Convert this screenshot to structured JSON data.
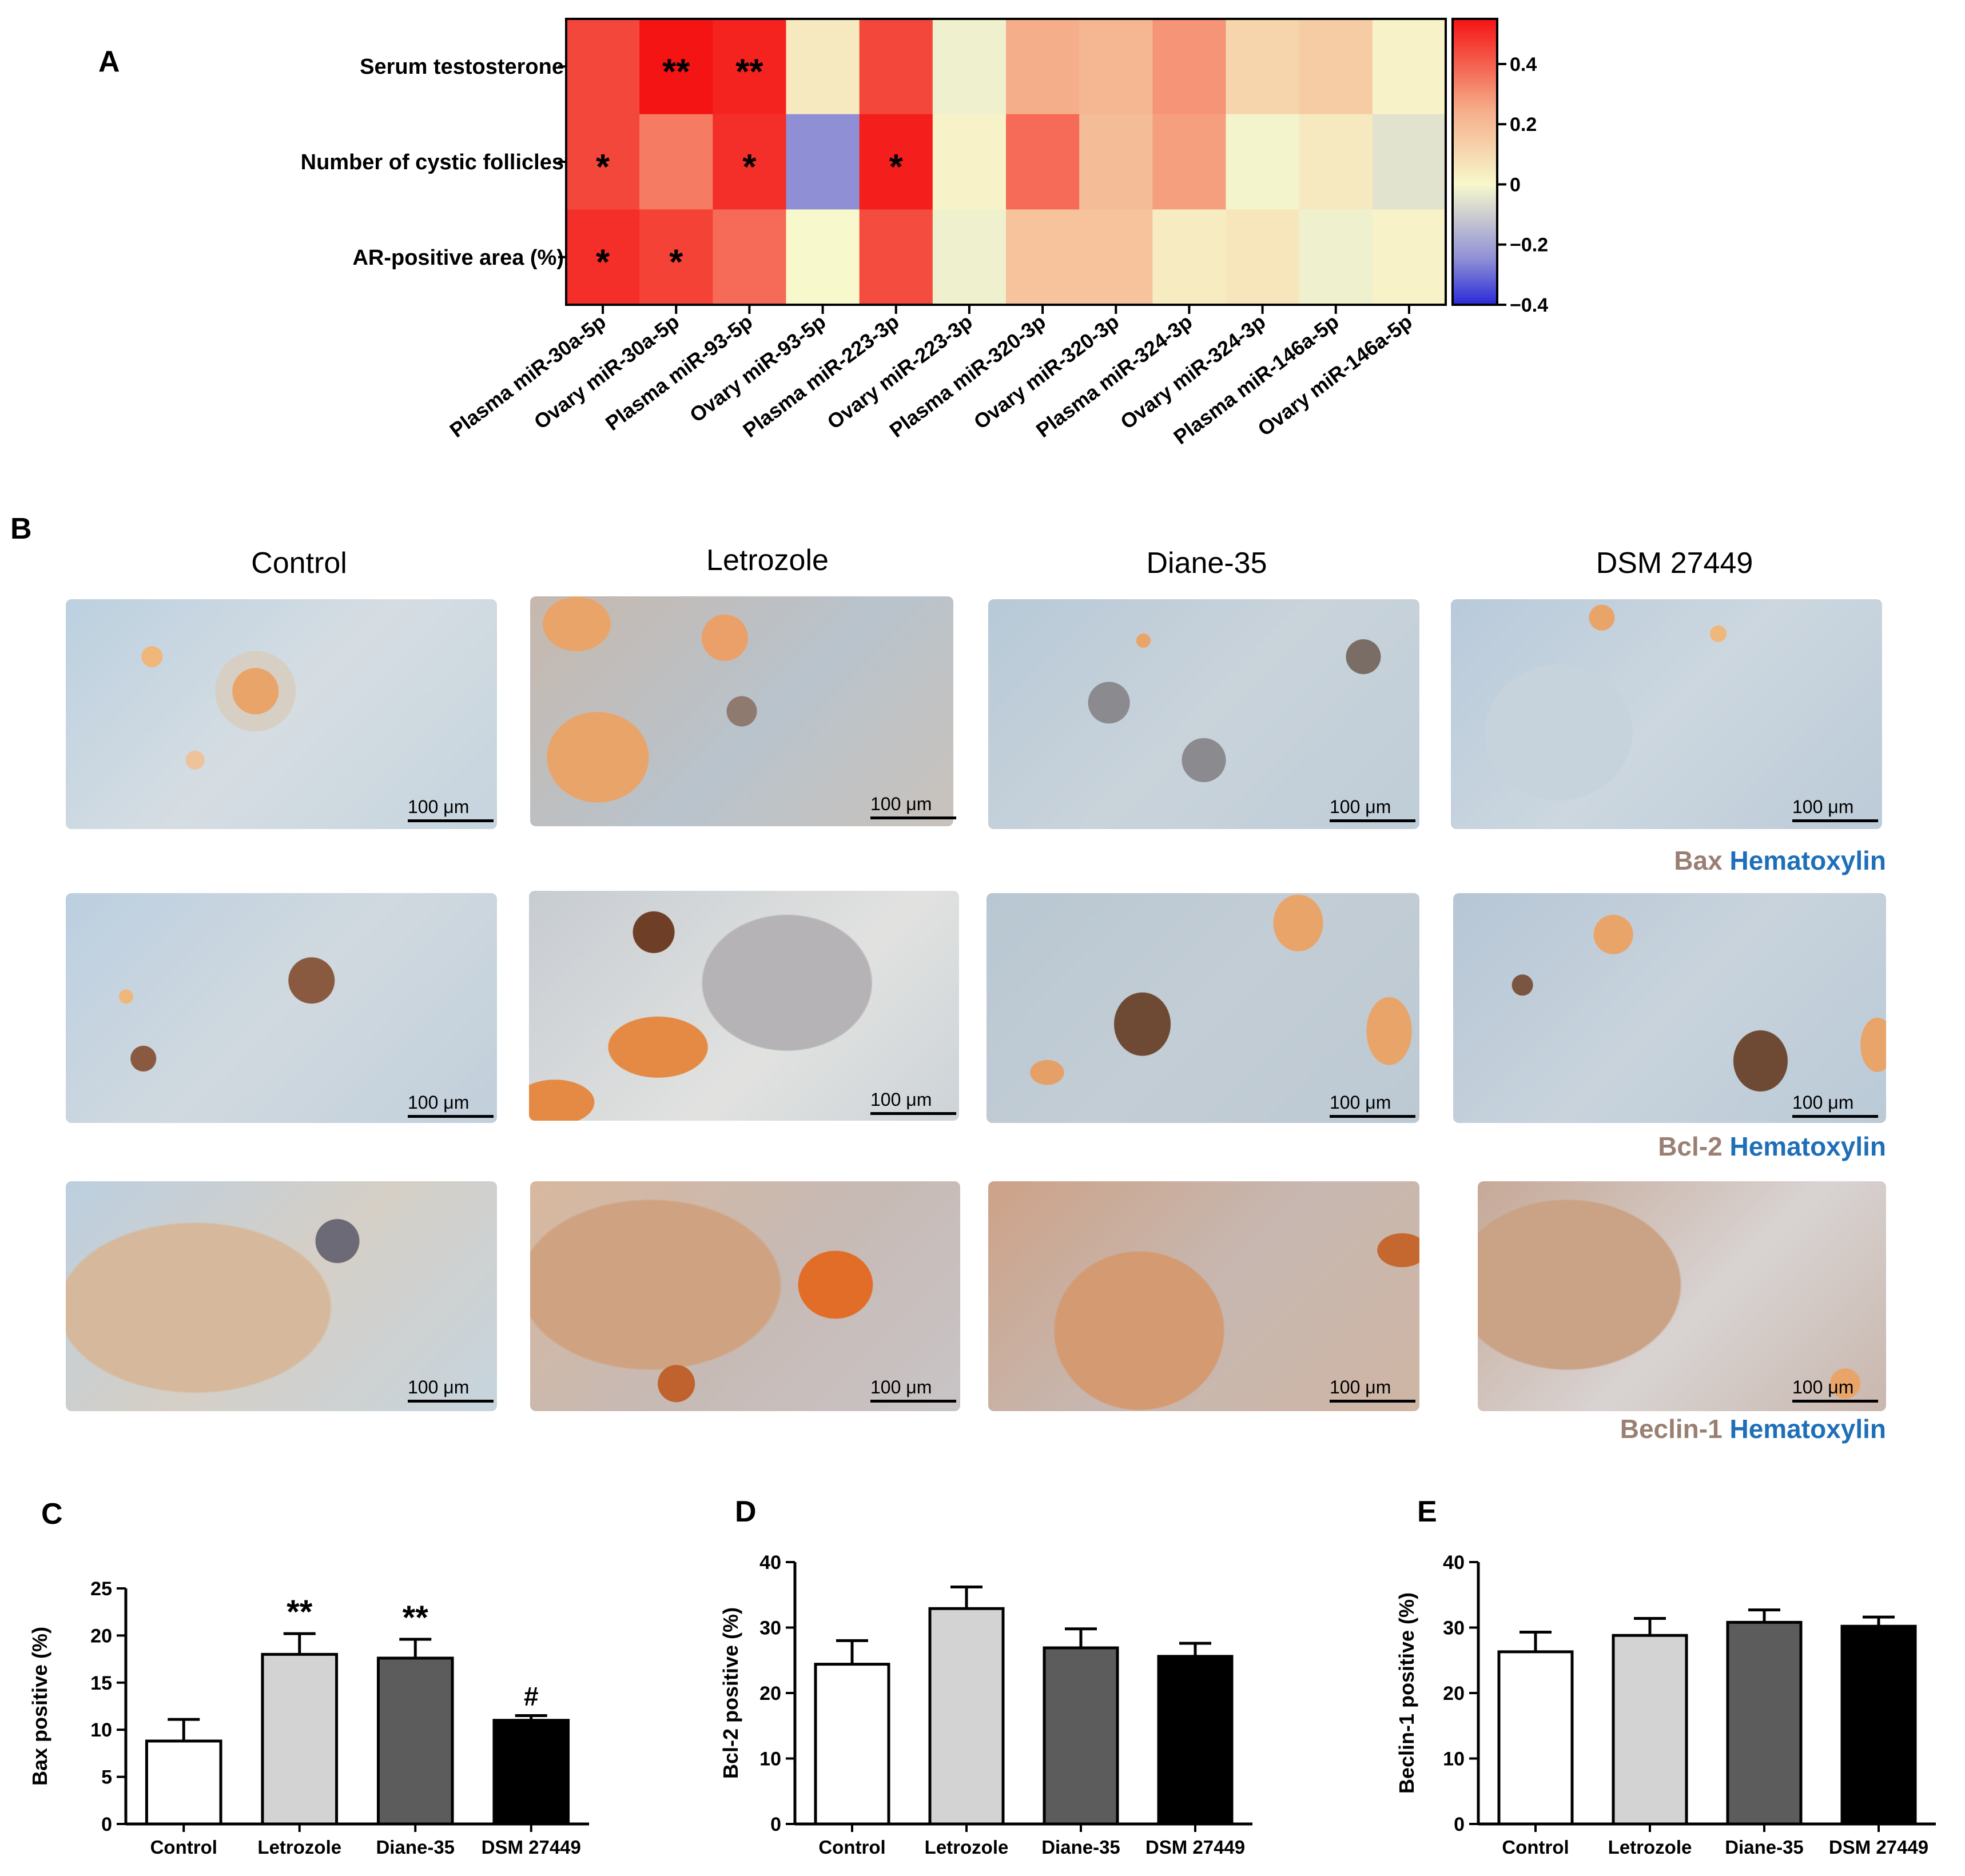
{
  "panel_labels": {
    "A": "A",
    "B": "B",
    "C": "C",
    "D": "D",
    "E": "E"
  },
  "heatmap": {
    "row_labels": [
      "Serum testosterone",
      "Number of cystic follicles",
      "AR-positive area (%)"
    ],
    "col_labels": [
      "Plasma miR-30a-5p",
      "Ovary miR-30a-5p",
      "Plasma miR-93-5p",
      "Ovary miR-93-5p",
      "Plasma miR-223-3p",
      "Ovary miR-223-3p",
      "Plasma miR-320-3p",
      "Ovary miR-320-3p",
      "Plasma miR-324-3p",
      "Ovary miR-324-3p",
      "Plasma miR-146a-5p",
      "Ovary miR-146a-5p"
    ],
    "values": [
      [
        0.45,
        0.55,
        0.52,
        0.05,
        0.45,
        -0.02,
        0.25,
        0.22,
        0.3,
        0.12,
        0.15,
        0.02
      ],
      [
        0.45,
        0.35,
        0.5,
        -0.25,
        0.53,
        0.02,
        0.38,
        0.2,
        0.28,
        -0.01,
        0.05,
        -0.05
      ],
      [
        0.5,
        0.46,
        0.38,
        0.0,
        0.44,
        -0.02,
        0.18,
        0.18,
        0.04,
        0.06,
        -0.02,
        0.02
      ]
    ],
    "stars": [
      [
        "",
        "**",
        "**",
        "",
        "",
        "",
        "",
        "",
        "",
        "",
        "",
        ""
      ],
      [
        "*",
        "",
        "*",
        "",
        "*",
        "",
        "",
        "",
        "",
        "",
        "",
        ""
      ],
      [
        "*",
        "*",
        "",
        "",
        "",
        "",
        "",
        "",
        "",
        "",
        "",
        ""
      ]
    ],
    "colorbar": {
      "min": -0.4,
      "max": 0.55,
      "ticks": [
        0.4,
        0.2,
        0,
        -0.2,
        -0.4
      ],
      "tick_labels": [
        "0.4",
        "0.2",
        "0",
        "−0.2",
        "−0.4"
      ]
    }
  },
  "micrographs": {
    "columns": [
      "Control",
      "Letrozole",
      "Diane-35",
      "DSM 27449"
    ],
    "scale_label": "100 μm",
    "stains": [
      {
        "marker": "Bax",
        "counter": "Hematoxylin"
      },
      {
        "marker": "Bcl-2",
        "counter": "Hematoxylin"
      },
      {
        "marker": "Beclin-1",
        "counter": "Hematoxylin"
      }
    ]
  },
  "chart_data": [
    {
      "type": "bar",
      "title": "",
      "categories": [
        "Control",
        "Letrozole",
        "Diane-35",
        "DSM 27449"
      ],
      "values": [
        8.8,
        18.0,
        17.6,
        11.0
      ],
      "errors": [
        2.3,
        2.2,
        2.0,
        0.5
      ],
      "annotations": [
        "",
        "**",
        "**",
        "#"
      ],
      "ylabel": "Bax positive (%)",
      "ylim": [
        0,
        25
      ],
      "yticks": [
        0,
        5,
        10,
        15,
        20,
        25
      ],
      "fills": [
        "#ffffff",
        "#d3d3d3",
        "#5c5c5c",
        "#000000"
      ]
    },
    {
      "type": "bar",
      "title": "",
      "categories": [
        "Control",
        "Letrozole",
        "Diane-35",
        "DSM 27449"
      ],
      "values": [
        24.4,
        32.9,
        26.9,
        25.6
      ],
      "errors": [
        3.6,
        3.3,
        2.9,
        2.0
      ],
      "annotations": [
        "",
        "",
        "",
        ""
      ],
      "ylabel": "Bcl-2 positive (%)",
      "ylim": [
        0,
        40
      ],
      "yticks": [
        0,
        10,
        20,
        30,
        40
      ],
      "fills": [
        "#ffffff",
        "#d3d3d3",
        "#5c5c5c",
        "#000000"
      ]
    },
    {
      "type": "bar",
      "title": "",
      "categories": [
        "Control",
        "Letrozole",
        "Diane-35",
        "DSM 27449"
      ],
      "values": [
        26.3,
        28.8,
        30.8,
        30.2
      ],
      "errors": [
        3.0,
        2.6,
        1.9,
        1.4
      ],
      "annotations": [
        "",
        "",
        "",
        ""
      ],
      "ylabel": "Beclin-1 positive (%)",
      "ylim": [
        0,
        40
      ],
      "yticks": [
        0,
        10,
        20,
        30,
        40
      ],
      "fills": [
        "#ffffff",
        "#d3d3d3",
        "#5c5c5c",
        "#000000"
      ]
    }
  ]
}
